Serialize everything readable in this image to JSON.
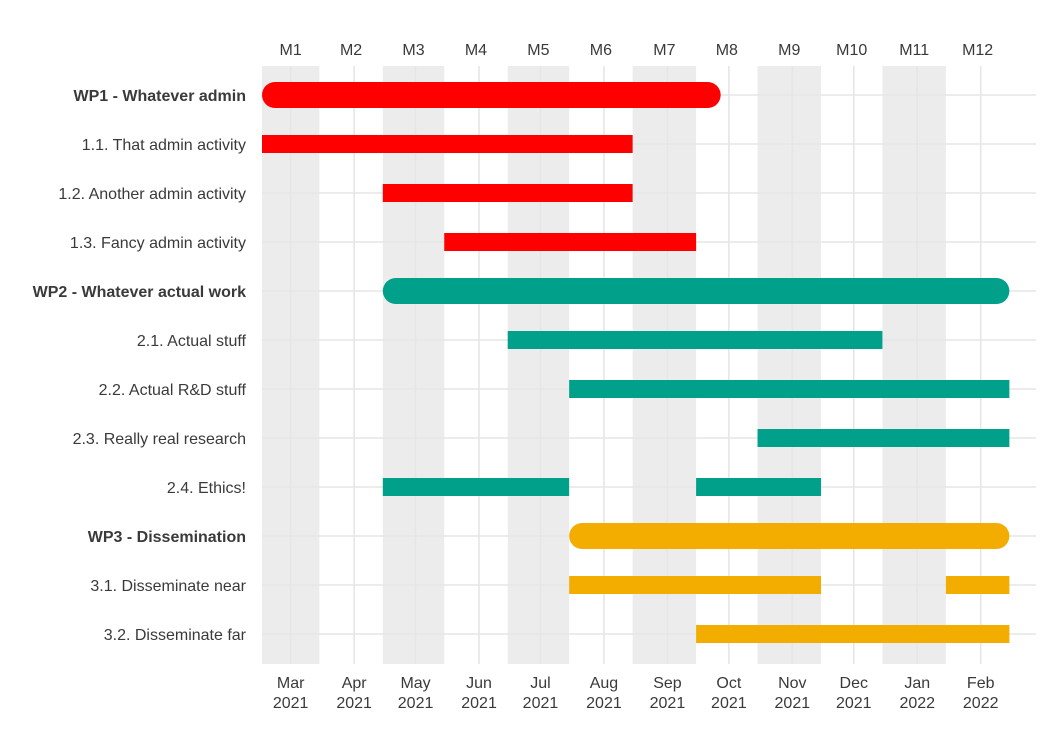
{
  "chart_data": {
    "type": "gantt",
    "month_labels": [
      "M1",
      "M2",
      "M3",
      "M4",
      "M5",
      "M6",
      "M7",
      "M8",
      "M9",
      "M10",
      "M11",
      "M12"
    ],
    "x_ticks": [
      {
        "month": "Mar",
        "year": "2021",
        "date": "2021-03-01"
      },
      {
        "month": "Apr",
        "year": "2021",
        "date": "2021-04-01"
      },
      {
        "month": "May",
        "year": "2021",
        "date": "2021-05-01"
      },
      {
        "month": "Jun",
        "year": "2021",
        "date": "2021-06-01"
      },
      {
        "month": "Jul",
        "year": "2021",
        "date": "2021-07-01"
      },
      {
        "month": "Aug",
        "year": "2021",
        "date": "2021-08-01"
      },
      {
        "month": "Sep",
        "year": "2021",
        "date": "2021-09-01"
      },
      {
        "month": "Oct",
        "year": "2021",
        "date": "2021-10-01"
      },
      {
        "month": "Nov",
        "year": "2021",
        "date": "2021-11-01"
      },
      {
        "month": "Dec",
        "year": "2021",
        "date": "2021-12-01"
      },
      {
        "month": "Jan",
        "year": "2022",
        "date": "2022-01-01"
      },
      {
        "month": "Feb",
        "year": "2022",
        "date": "2022-02-01"
      }
    ],
    "x_range": [
      "2021-02-15",
      "2022-02-28"
    ],
    "colors": {
      "WP1": "#ff0000",
      "WP2": "#00a08a",
      "WP3": "#f2ad00",
      "shade": "#ececec",
      "grid": "#e6e6e6"
    },
    "tasks": [
      {
        "label": "WP1 - Whatever admin",
        "kind": "wp",
        "group": "WP1",
        "segments": [
          [
            "2021-02-15",
            "2021-09-27"
          ]
        ]
      },
      {
        "label": "1.1. That admin activity",
        "kind": "task",
        "group": "WP1",
        "segments": [
          [
            "2021-02-15",
            "2021-08-15"
          ]
        ]
      },
      {
        "label": "1.2. Another admin activity",
        "kind": "task",
        "group": "WP1",
        "segments": [
          [
            "2021-04-15",
            "2021-08-15"
          ]
        ]
      },
      {
        "label": "1.3. Fancy admin activity",
        "kind": "task",
        "group": "WP1",
        "segments": [
          [
            "2021-05-15",
            "2021-09-15"
          ]
        ]
      },
      {
        "label": "WP2 - Whatever actual work",
        "kind": "wp",
        "group": "WP2",
        "segments": [
          [
            "2021-04-15",
            "2022-02-15"
          ]
        ]
      },
      {
        "label": "2.1. Actual stuff",
        "kind": "task",
        "group": "WP2",
        "segments": [
          [
            "2021-06-15",
            "2021-12-15"
          ]
        ]
      },
      {
        "label": "2.2. Actual R&D stuff",
        "kind": "task",
        "group": "WP2",
        "segments": [
          [
            "2021-07-15",
            "2022-02-15"
          ]
        ]
      },
      {
        "label": "2.3. Really real research",
        "kind": "task",
        "group": "WP2",
        "segments": [
          [
            "2021-10-15",
            "2022-02-15"
          ]
        ]
      },
      {
        "label": "2.4. Ethics!",
        "kind": "task",
        "group": "WP2",
        "segments": [
          [
            "2021-04-15",
            "2021-07-15"
          ],
          [
            "2021-09-15",
            "2021-11-15"
          ]
        ]
      },
      {
        "label": "WP3 - Dissemination",
        "kind": "wp",
        "group": "WP3",
        "segments": [
          [
            "2021-07-15",
            "2022-02-15"
          ]
        ]
      },
      {
        "label": "3.1. Disseminate near",
        "kind": "task",
        "group": "WP3",
        "segments": [
          [
            "2021-07-15",
            "2021-11-15"
          ],
          [
            "2022-01-15",
            "2022-02-15"
          ]
        ]
      },
      {
        "label": "3.2. Disseminate far",
        "kind": "task",
        "group": "WP3",
        "segments": [
          [
            "2021-09-15",
            "2022-02-15"
          ]
        ]
      }
    ]
  }
}
